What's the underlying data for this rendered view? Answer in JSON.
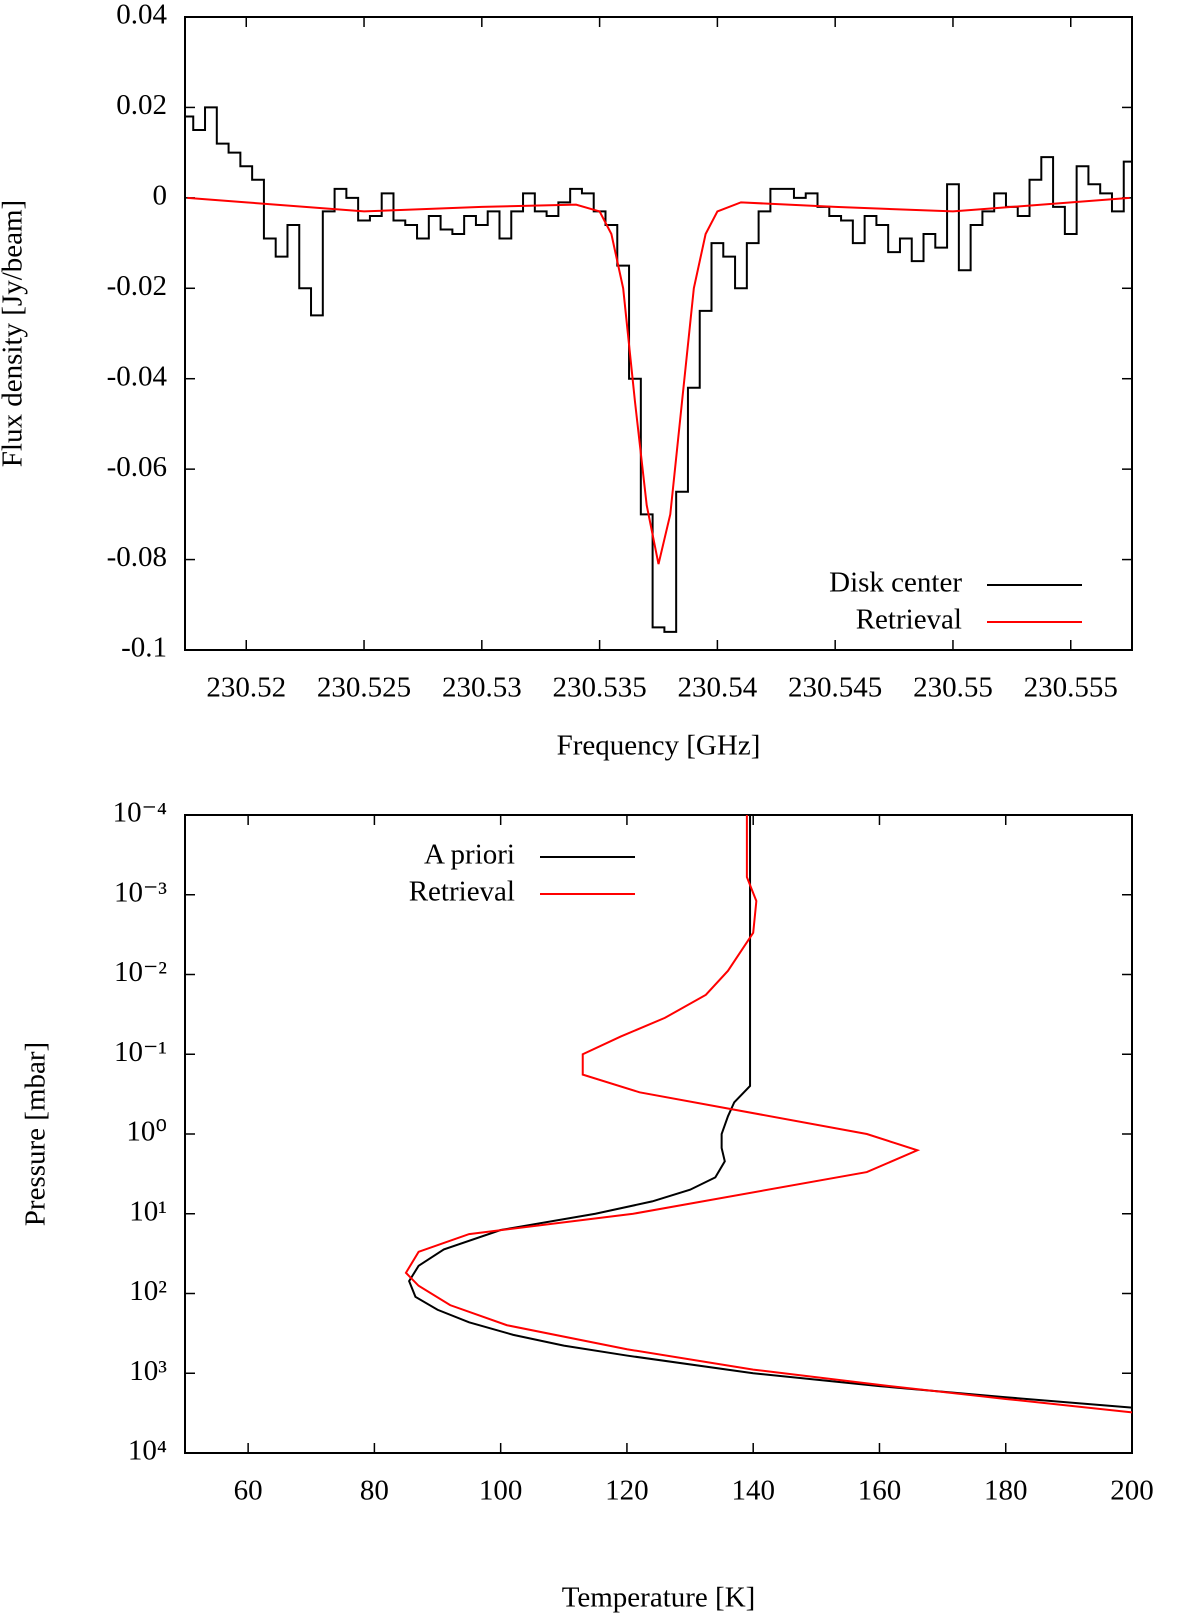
{
  "chart_data": [
    {
      "type": "line",
      "xlabel": "Frequency [GHz]",
      "ylabel": "Flux density [Jy/beam]",
      "xlim": [
        230.5174,
        230.5576
      ],
      "ylim": [
        -0.1,
        0.04
      ],
      "xticks": [
        230.52,
        230.525,
        230.53,
        230.535,
        230.54,
        230.545,
        230.55,
        230.555
      ],
      "yticks": [
        -0.1,
        -0.08,
        -0.06,
        -0.04,
        -0.02,
        0,
        0.02,
        0.04
      ],
      "legend": "lower right",
      "series": [
        {
          "name": "Disk center",
          "color": "#000000",
          "draw_style": "steps",
          "x": [
            230.5175,
            230.518,
            230.5185,
            230.519,
            230.5195,
            230.52,
            230.5205,
            230.521,
            230.5215,
            230.522,
            230.5225,
            230.523,
            230.5235,
            230.524,
            230.5245,
            230.525,
            230.5255,
            230.526,
            230.5265,
            230.527,
            230.5275,
            230.528,
            230.5285,
            230.529,
            230.5295,
            230.53,
            230.5305,
            230.531,
            230.5315,
            230.532,
            230.5325,
            230.533,
            230.5335,
            230.534,
            230.5345,
            230.535,
            230.5355,
            230.536,
            230.5365,
            230.537,
            230.5375,
            230.538,
            230.5385,
            230.539,
            230.5395,
            230.54,
            230.5405,
            230.541,
            230.5415,
            230.542,
            230.5425,
            230.543,
            230.5435,
            230.544,
            230.5445,
            230.545,
            230.5455,
            230.546,
            230.5465,
            230.547,
            230.5475,
            230.548,
            230.5485,
            230.549,
            230.5495,
            230.55,
            230.5505,
            230.551,
            230.5515,
            230.552,
            230.5525,
            230.553,
            230.5535,
            230.554,
            230.5545,
            230.555,
            230.5555,
            230.556,
            230.5565,
            230.557,
            230.5575
          ],
          "values": [
            0.018,
            0.015,
            0.02,
            0.012,
            0.01,
            0.007,
            0.004,
            -0.009,
            -0.013,
            -0.006,
            -0.02,
            -0.026,
            -0.003,
            0.002,
            0,
            -0.005,
            -0.004,
            0.001,
            -0.005,
            -0.006,
            -0.009,
            -0.004,
            -0.007,
            -0.008,
            -0.004,
            -0.006,
            -0.003,
            -0.009,
            -0.003,
            0.001,
            -0.003,
            -0.004,
            -0.001,
            0.002,
            0.001,
            -0.003,
            -0.006,
            -0.015,
            -0.04,
            -0.07,
            -0.095,
            -0.096,
            -0.065,
            -0.042,
            -0.025,
            -0.01,
            -0.013,
            -0.02,
            -0.01,
            -0.003,
            0.002,
            0.002,
            0,
            0.001,
            -0.002,
            -0.004,
            -0.005,
            -0.01,
            -0.004,
            -0.006,
            -0.012,
            -0.009,
            -0.014,
            -0.008,
            -0.011,
            0.003,
            -0.016,
            -0.006,
            -0.003,
            0.001,
            -0.002,
            -0.004,
            0.004,
            0.009,
            -0.002,
            -0.008,
            0.007,
            0.003,
            0.001,
            -0.003,
            0.008
          ]
        },
        {
          "name": "Retrieval",
          "color": "#ff0000",
          "x": [
            230.5175,
            230.52,
            230.525,
            230.53,
            230.534,
            230.535,
            230.5355,
            230.536,
            230.5365,
            230.537,
            230.5375,
            230.538,
            230.5385,
            230.539,
            230.5395,
            230.54,
            230.541,
            230.545,
            230.55,
            230.5575
          ],
          "values": [
            0,
            -0.001,
            -0.003,
            -0.002,
            -0.0015,
            -0.003,
            -0.008,
            -0.02,
            -0.045,
            -0.068,
            -0.081,
            -0.07,
            -0.045,
            -0.02,
            -0.008,
            -0.003,
            -0.001,
            -0.002,
            -0.003,
            0
          ]
        }
      ]
    },
    {
      "type": "line",
      "xlabel": "Temperature [K]",
      "ylabel": "Pressure [mbar]",
      "xlim": [
        50,
        200
      ],
      "ylim": [
        10000,
        0.0001
      ],
      "log_y": true,
      "xticks": [
        60,
        80,
        100,
        120,
        140,
        160,
        180,
        200
      ],
      "yticks": [
        {
          "value": 0.0001,
          "label": "10⁻⁴"
        },
        {
          "value": 0.001,
          "label": "10⁻³"
        },
        {
          "value": 0.01,
          "label": "10⁻²"
        },
        {
          "value": 0.1,
          "label": "10⁻¹"
        },
        {
          "value": 1,
          "label": "10⁰"
        },
        {
          "value": 10,
          "label": "10¹"
        },
        {
          "value": 100,
          "label": "10²"
        },
        {
          "value": 1000,
          "label": "10³"
        },
        {
          "value": 10000,
          "label": "10⁴"
        }
      ],
      "legend": "upper left",
      "series": [
        {
          "name": "A priori",
          "color": "#000000",
          "x": [
            139.5,
            139.5,
            137,
            136,
            135,
            135,
            135.5,
            134,
            130,
            124,
            115,
            100,
            91,
            87,
            85.5,
            86.5,
            90,
            95,
            102,
            110,
            120,
            140,
            160,
            180,
            200
          ],
          "values": [
            0.0001,
            0.25,
            0.4,
            0.6,
            1,
            1.5,
            2.2,
            3.5,
            5,
            7,
            10,
            16,
            28,
            45,
            70,
            110,
            160,
            230,
            330,
            450,
            600,
            1000,
            1450,
            2000,
            2700
          ]
        },
        {
          "name": "Retrieval",
          "color": "#ff0000",
          "x": [
            139,
            139,
            140.5,
            140,
            136,
            132.5,
            126,
            119,
            113,
            113,
            122,
            158,
            166,
            158,
            121,
            95,
            87,
            85,
            87,
            92,
            101,
            120,
            140,
            160,
            180,
            200
          ],
          "values": [
            0.0001,
            0.0006,
            0.0012,
            0.003,
            0.009,
            0.018,
            0.035,
            0.06,
            0.1,
            0.18,
            0.3,
            1,
            1.6,
            3,
            10,
            18,
            30,
            55,
            80,
            140,
            250,
            500,
            900,
            1400,
            2100,
            3100
          ]
        }
      ]
    }
  ]
}
